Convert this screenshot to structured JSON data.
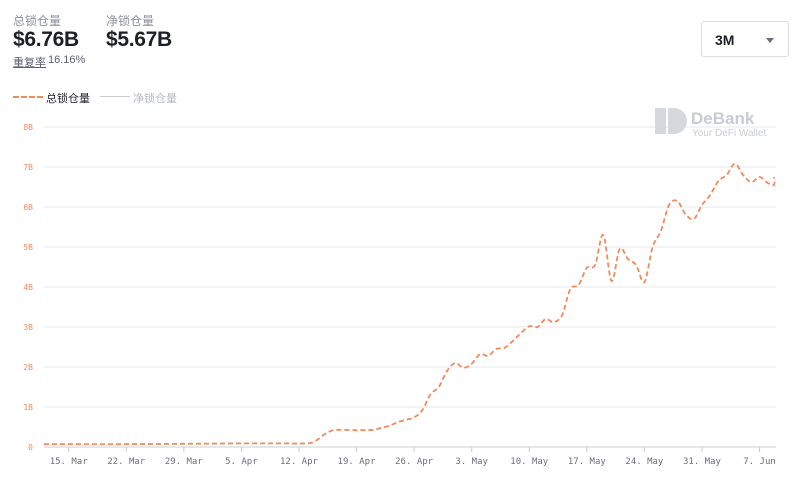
{
  "header": {
    "total": {
      "label": "总锁仓量",
      "value": "$6.76B"
    },
    "net": {
      "label": "净锁仓量",
      "value": "$5.67B"
    },
    "reuse": {
      "label": "重复率",
      "value": "16.16%"
    }
  },
  "range_select": {
    "value": "3M"
  },
  "legend": {
    "total_label": "总锁仓量",
    "net_label": "净锁仓量"
  },
  "watermark": {
    "title": "DeBank",
    "subtitle": "Your DeFi Wallet"
  },
  "colors": {
    "total_series": "#f08a5d",
    "net_series": "#c9ccd2",
    "grid": "#e8eaed",
    "axis": "#c9ccd2"
  },
  "chart_data": {
    "type": "line",
    "y_unit": "USD billions",
    "ylim": [
      0,
      8
    ],
    "y_ticks": [
      0,
      1,
      2,
      3,
      4,
      5,
      6,
      7,
      8
    ],
    "y_tick_labels": [
      "0",
      "1B",
      "2B",
      "3B",
      "4B",
      "5B",
      "6B",
      "7B",
      "8B"
    ],
    "xlim": [
      "2021-03-12",
      "2021-06-09"
    ],
    "x_ticks": [
      "2021-03-15",
      "2021-03-22",
      "2021-03-29",
      "2021-04-05",
      "2021-04-12",
      "2021-04-19",
      "2021-04-26",
      "2021-05-03",
      "2021-05-10",
      "2021-05-17",
      "2021-05-24",
      "2021-05-31",
      "2021-06-07"
    ],
    "x_tick_labels": [
      "15. Mar",
      "22. Mar",
      "29. Mar",
      "5. Apr",
      "12. Apr",
      "19. Apr",
      "26. Apr",
      "3. May",
      "10. May",
      "17. May",
      "24. May",
      "31. May",
      "7. Jun"
    ],
    "grid": true,
    "legend_position": "top-left",
    "series": [
      {
        "name": "总锁仓量",
        "style": "dashed",
        "points": [
          [
            "2021-03-12",
            0.07
          ],
          [
            "2021-03-15",
            0.07
          ],
          [
            "2021-03-22",
            0.07
          ],
          [
            "2021-03-29",
            0.08
          ],
          [
            "2021-04-05",
            0.09
          ],
          [
            "2021-04-10",
            0.09
          ],
          [
            "2021-04-13",
            0.09
          ],
          [
            "2021-04-14",
            0.15
          ],
          [
            "2021-04-15",
            0.3
          ],
          [
            "2021-04-16",
            0.41
          ],
          [
            "2021-04-17",
            0.43
          ],
          [
            "2021-04-19",
            0.42
          ],
          [
            "2021-04-21",
            0.43
          ],
          [
            "2021-04-22",
            0.48
          ],
          [
            "2021-04-23",
            0.53
          ],
          [
            "2021-04-24",
            0.62
          ],
          [
            "2021-04-25",
            0.68
          ],
          [
            "2021-04-26",
            0.74
          ],
          [
            "2021-04-27",
            0.92
          ],
          [
            "2021-04-28",
            1.32
          ],
          [
            "2021-04-29",
            1.5
          ],
          [
            "2021-04-30",
            1.9
          ],
          [
            "2021-05-01",
            2.1
          ],
          [
            "2021-05-02",
            1.98
          ],
          [
            "2021-05-03",
            2.08
          ],
          [
            "2021-05-04",
            2.32
          ],
          [
            "2021-05-05",
            2.28
          ],
          [
            "2021-05-06",
            2.45
          ],
          [
            "2021-05-07",
            2.48
          ],
          [
            "2021-05-08",
            2.65
          ],
          [
            "2021-05-09",
            2.85
          ],
          [
            "2021-05-10",
            3.02
          ],
          [
            "2021-05-11",
            3.0
          ],
          [
            "2021-05-12",
            3.2
          ],
          [
            "2021-05-13",
            3.12
          ],
          [
            "2021-05-14",
            3.3
          ],
          [
            "2021-05-15",
            3.95
          ],
          [
            "2021-05-16",
            4.05
          ],
          [
            "2021-05-17",
            4.48
          ],
          [
            "2021-05-18",
            4.55
          ],
          [
            "2021-05-19",
            5.3
          ],
          [
            "2021-05-20",
            4.15
          ],
          [
            "2021-05-21",
            4.95
          ],
          [
            "2021-05-22",
            4.7
          ],
          [
            "2021-05-23",
            4.55
          ],
          [
            "2021-05-24",
            4.12
          ],
          [
            "2021-05-25",
            5.0
          ],
          [
            "2021-05-26",
            5.4
          ],
          [
            "2021-05-27",
            6.05
          ],
          [
            "2021-05-28",
            6.15
          ],
          [
            "2021-05-29",
            5.82
          ],
          [
            "2021-05-30",
            5.7
          ],
          [
            "2021-05-31",
            6.05
          ],
          [
            "2021-06-01",
            6.3
          ],
          [
            "2021-06-02",
            6.65
          ],
          [
            "2021-06-03",
            6.8
          ],
          [
            "2021-06-04",
            7.08
          ],
          [
            "2021-06-05",
            6.8
          ],
          [
            "2021-06-06",
            6.62
          ],
          [
            "2021-06-07",
            6.75
          ],
          [
            "2021-06-08",
            6.6
          ],
          [
            "2021-06-09",
            6.55
          ],
          [
            "2021-06-10",
            6.75
          ]
        ]
      }
    ]
  }
}
